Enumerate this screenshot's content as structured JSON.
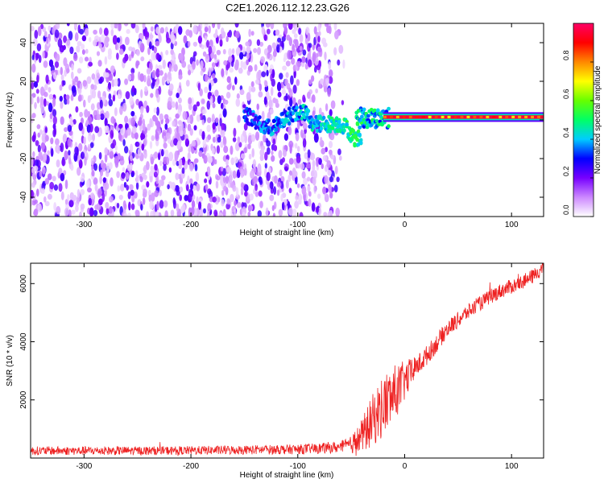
{
  "figure_title": "C2E1.2026.112.12.23.G26",
  "chart_data": [
    {
      "type": "heatmap",
      "panel": "top",
      "title": "C2E1.2026.112.12.23.G26",
      "xlabel": "Height of straight line (km)",
      "ylabel": "Frequency (Hz)",
      "xlim": [
        -350,
        130
      ],
      "ylim": [
        -50,
        50
      ],
      "xticks": [
        -300,
        -200,
        -100,
        0,
        100
      ],
      "yticks": [
        -40,
        -20,
        0,
        20,
        40
      ],
      "grid": false,
      "colorbar": {
        "label": "Normalized spectral amplitude",
        "range": [
          0,
          1
        ],
        "ticks": [
          "0.0",
          "0.2",
          "0.4",
          "0.6",
          "0.8"
        ],
        "colormap": [
          "#ffffff",
          "#cc88ff",
          "#7700ff",
          "#0000ff",
          "#00ccff",
          "#00ff66",
          "#66ff00",
          "#ffff00",
          "#ff8800",
          "#ff0000",
          "#ff0066"
        ]
      },
      "features": [
        {
          "name": "scattered noise",
          "x_range": [
            -350,
            -60
          ],
          "y_range": [
            -50,
            50
          ],
          "amplitude": 0.1
        },
        {
          "name": "emerging signal",
          "x_range": [
            -150,
            -40
          ],
          "y_center": 0,
          "amplitude": 0.35
        },
        {
          "name": "steady carrier",
          "x_range": [
            -20,
            130
          ],
          "y_center": 1.5,
          "amplitude": 0.95
        }
      ]
    },
    {
      "type": "line",
      "panel": "bottom",
      "xlabel": "Height of straight line (km)",
      "ylabel": "SNR (10 * v/v)",
      "xlim": [
        -350,
        130
      ],
      "ylim": [
        0,
        6700
      ],
      "xticks": [
        -300,
        -200,
        -100,
        0,
        100
      ],
      "yticks": [
        2000,
        4000,
        6000
      ],
      "grid": false,
      "series": [
        {
          "name": "SNR",
          "color": "#ee2222",
          "x": [
            -350,
            -300,
            -250,
            -200,
            -150,
            -100,
            -80,
            -60,
            -50,
            -40,
            -30,
            -20,
            -10,
            0,
            10,
            20,
            30,
            40,
            50,
            60,
            70,
            80,
            90,
            100,
            110,
            120,
            130
          ],
          "y": [
            250,
            250,
            250,
            260,
            280,
            300,
            330,
            380,
            450,
            750,
            1300,
            1800,
            2200,
            2650,
            3100,
            3500,
            3950,
            4450,
            4750,
            5050,
            5300,
            5550,
            5750,
            5900,
            6050,
            6250,
            6550
          ],
          "noise_amplitude": [
            150,
            150,
            150,
            150,
            160,
            170,
            180,
            200,
            300,
            600,
            900,
            1100,
            1000,
            700,
            400,
            350,
            320,
            300,
            280,
            270,
            260,
            260,
            260,
            260,
            250,
            250,
            250
          ]
        }
      ]
    }
  ]
}
